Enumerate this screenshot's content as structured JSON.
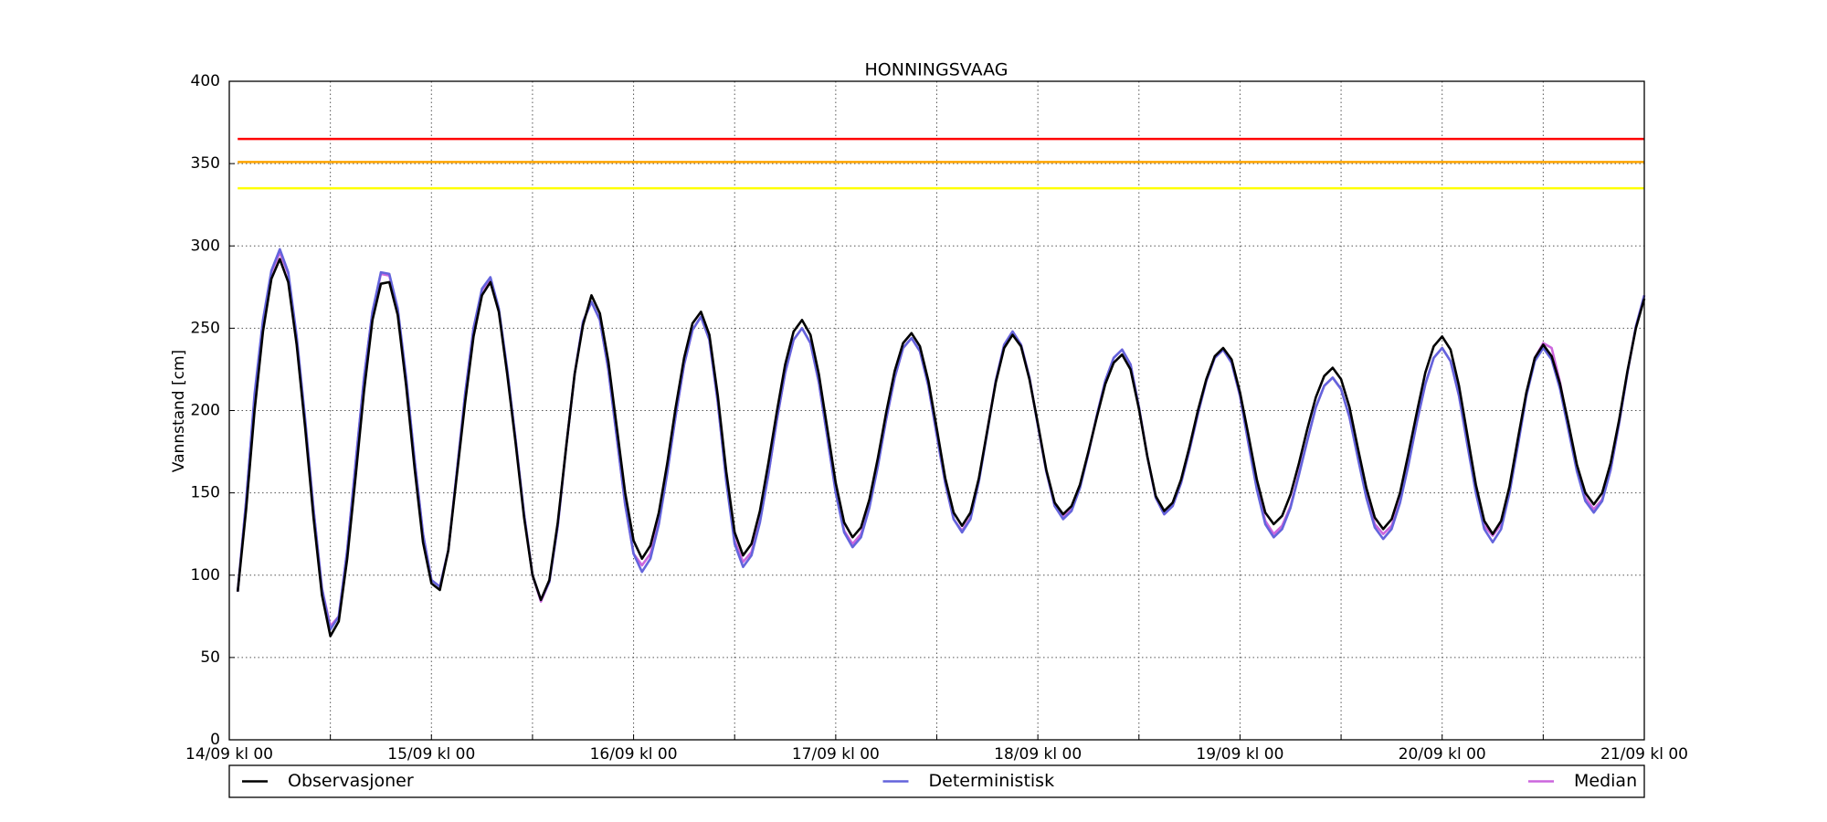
{
  "chart_data": {
    "type": "line",
    "title": "HONNINGSVAAG",
    "y_label": "Vannstand [cm]",
    "x": [
      1,
      2,
      3,
      4,
      5,
      6,
      7,
      8,
      9,
      10,
      11,
      12,
      13,
      14,
      15,
      16,
      17,
      18,
      19,
      20,
      21,
      22,
      23,
      24,
      25,
      26,
      27,
      28,
      29,
      30,
      31,
      32,
      33,
      34,
      35,
      36,
      37,
      38,
      39,
      40,
      41,
      42,
      43,
      44,
      45,
      46,
      47,
      48,
      49,
      50,
      51,
      52,
      53,
      54,
      55,
      56,
      57,
      58,
      59,
      60,
      61,
      62,
      63,
      64,
      65,
      66,
      67,
      68,
      69,
      70,
      71,
      72,
      73,
      74,
      75,
      76,
      77,
      78,
      79,
      80,
      81,
      82,
      83,
      84,
      85,
      86,
      87,
      88,
      89,
      90,
      91,
      92,
      93,
      94,
      95,
      96,
      97,
      98,
      99,
      100,
      101,
      102,
      103,
      104,
      105,
      106,
      107,
      108,
      109,
      110,
      111,
      112,
      113,
      114,
      115,
      116,
      117,
      118,
      119,
      120,
      121,
      122,
      123,
      124,
      125,
      126,
      127,
      128,
      129,
      130,
      131,
      132,
      133,
      134,
      135,
      136,
      137,
      138,
      139,
      140,
      141,
      142,
      143,
      144,
      145,
      146,
      147,
      148,
      149,
      150,
      151,
      152,
      153,
      154,
      155,
      156,
      157,
      158,
      159,
      160,
      161,
      162,
      163,
      164,
      165,
      166,
      167,
      168
    ],
    "series": [
      {
        "name": "Observasjoner",
        "color": "#000000",
        "values": [
          90,
          140,
          200,
          248,
          280,
          292,
          278,
          240,
          190,
          135,
          88,
          63,
          72,
          110,
          160,
          212,
          255,
          277,
          278,
          258,
          215,
          165,
          120,
          95,
          91,
          115,
          160,
          205,
          245,
          270,
          278,
          260,
          222,
          180,
          135,
          100,
          85,
          97,
          132,
          178,
          222,
          252,
          270,
          259,
          230,
          190,
          150,
          121,
          110,
          118,
          138,
          168,
          202,
          232,
          253,
          260,
          246,
          209,
          163,
          126,
          112,
          119,
          139,
          168,
          199,
          228,
          248,
          255,
          246,
          222,
          189,
          156,
          132,
          123,
          129,
          146,
          171,
          199,
          224,
          241,
          247,
          239,
          218,
          189,
          159,
          138,
          130,
          138,
          159,
          188,
          217,
          238,
          246,
          239,
          219,
          192,
          164,
          144,
          137,
          142,
          155,
          175,
          196,
          216,
          229,
          234,
          225,
          201,
          172,
          148,
          139,
          144,
          158,
          178,
          200,
          219,
          233,
          238,
          231,
          211,
          185,
          158,
          138,
          131,
          136,
          149,
          168,
          189,
          208,
          221,
          226,
          219,
          202,
          177,
          153,
          135,
          128,
          134,
          150,
          174,
          199,
          223,
          239,
          245,
          237,
          215,
          185,
          155,
          133,
          125,
          133,
          154,
          183,
          211,
          232,
          240,
          233,
          216,
          192,
          167,
          150,
          143,
          150,
          168,
          194,
          224,
          250,
          268
        ]
      },
      {
        "name": "Deterministisk",
        "color": "#6464dc",
        "values": [
          90,
          145,
          210,
          255,
          285,
          298,
          284,
          245,
          195,
          140,
          92,
          67,
          75,
          115,
          168,
          220,
          260,
          284,
          283,
          262,
          220,
          170,
          125,
          97,
          93,
          115,
          162,
          210,
          250,
          274,
          281,
          262,
          225,
          182,
          137,
          100,
          85,
          96,
          130,
          178,
          222,
          254,
          266,
          255,
          225,
          184,
          143,
          113,
          102,
          110,
          131,
          162,
          197,
          228,
          249,
          257,
          243,
          205,
          157,
          119,
          105,
          112,
          132,
          161,
          194,
          223,
          243,
          250,
          241,
          217,
          184,
          150,
          126,
          117,
          123,
          141,
          166,
          195,
          220,
          238,
          244,
          236,
          215,
          185,
          156,
          134,
          126,
          134,
          157,
          187,
          218,
          240,
          248,
          240,
          220,
          191,
          163,
          142,
          134,
          139,
          153,
          174,
          197,
          218,
          232,
          237,
          228,
          202,
          172,
          147,
          137,
          142,
          156,
          176,
          198,
          218,
          232,
          237,
          229,
          209,
          180,
          152,
          131,
          123,
          128,
          141,
          161,
          182,
          202,
          215,
          220,
          213,
          196,
          171,
          147,
          129,
          122,
          128,
          144,
          167,
          193,
          216,
          232,
          238,
          230,
          209,
          179,
          150,
          128,
          120,
          128,
          150,
          179,
          209,
          230,
          238,
          231,
          213,
          188,
          163,
          145,
          138,
          145,
          164,
          192,
          223,
          251,
          270
        ]
      },
      {
        "name": "Median",
        "color": "#cc66dd",
        "values": [
          90,
          145,
          208,
          254,
          284,
          296,
          283,
          244,
          194,
          140,
          92,
          69,
          75,
          115,
          168,
          220,
          260,
          283,
          282,
          261,
          219,
          170,
          125,
          97,
          93,
          115,
          162,
          210,
          250,
          273,
          280,
          261,
          224,
          182,
          137,
          100,
          84,
          96,
          130,
          178,
          222,
          254,
          266,
          255,
          225,
          184,
          143,
          113,
          106,
          113,
          133,
          163,
          197,
          228,
          249,
          257,
          243,
          205,
          158,
          121,
          108,
          114,
          133,
          161,
          194,
          223,
          243,
          250,
          241,
          217,
          184,
          151,
          127,
          119,
          125,
          142,
          167,
          195,
          220,
          238,
          244,
          236,
          215,
          185,
          156,
          134,
          127,
          135,
          158,
          188,
          218,
          240,
          248,
          240,
          220,
          191,
          163,
          142,
          135,
          140,
          154,
          174,
          197,
          218,
          232,
          237,
          228,
          202,
          172,
          147,
          137,
          142,
          156,
          176,
          198,
          218,
          232,
          237,
          229,
          209,
          180,
          153,
          133,
          125,
          130,
          142,
          162,
          182,
          202,
          215,
          220,
          213,
          196,
          172,
          149,
          131,
          125,
          130,
          145,
          168,
          193,
          216,
          232,
          238,
          230,
          209,
          180,
          152,
          130,
          124,
          131,
          152,
          180,
          210,
          232,
          241,
          238,
          217,
          190,
          165,
          147,
          140,
          146,
          164,
          192,
          223,
          251,
          270
        ]
      }
    ],
    "hlines": [
      {
        "value": 365,
        "color": "#ff0000"
      },
      {
        "value": 351,
        "color": "#ffa500"
      },
      {
        "value": 335,
        "color": "#ffff00"
      }
    ],
    "xlim": [
      0,
      168
    ],
    "xticks": [
      {
        "value": 0,
        "label": "14/09 kl 00"
      },
      {
        "value": 24,
        "label": "15/09 kl 00"
      },
      {
        "value": 48,
        "label": "16/09 kl 00"
      },
      {
        "value": 72,
        "label": "17/09 kl 00"
      },
      {
        "value": 96,
        "label": "18/09 kl 00"
      },
      {
        "value": 120,
        "label": "19/09 kl 00"
      },
      {
        "value": 144,
        "label": "20/09 kl 00"
      },
      {
        "value": 168,
        "label": "21/09 kl 00"
      }
    ],
    "xminorticks": [
      12,
      36,
      60,
      84,
      108,
      132,
      156
    ],
    "ylim": [
      0,
      400
    ],
    "yticks": [
      0,
      50,
      100,
      150,
      200,
      250,
      300,
      350,
      400
    ],
    "grid": true,
    "legend": "below"
  }
}
